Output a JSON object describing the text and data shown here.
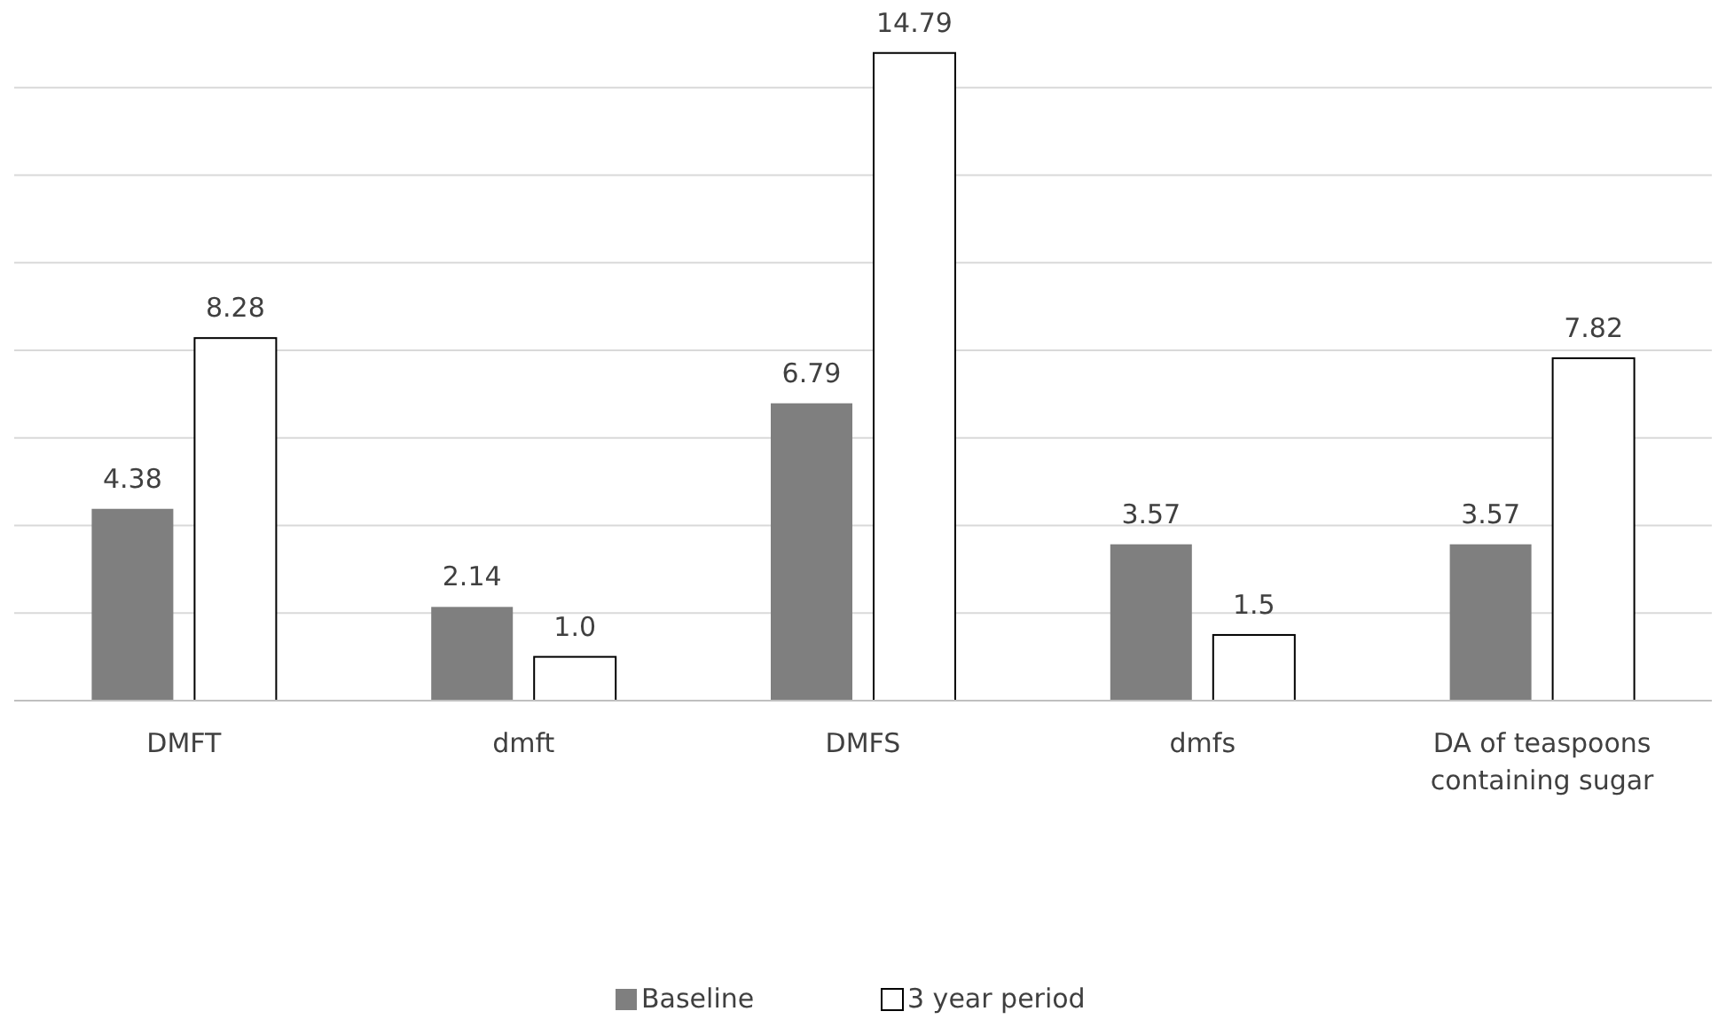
{
  "chart_data": {
    "type": "bar",
    "categories": [
      "DMFT",
      "dmft",
      "DMFS",
      "dmfs",
      "DA of teaspoons containing sugar"
    ],
    "series": [
      {
        "name": "Baseline",
        "color": "#7f7f7f",
        "values": [
          4.38,
          2.14,
          6.79,
          3.57,
          3.57
        ],
        "value_labels": [
          "4.38",
          "2.14",
          "6.79",
          "3.57",
          "3.57"
        ]
      },
      {
        "name": "3 year period",
        "color": "#ffffff",
        "values": [
          8.28,
          1.0,
          14.79,
          1.5,
          7.82
        ],
        "value_labels": [
          "8.28",
          "1.0",
          "14.79",
          "1.5",
          "7.82"
        ]
      }
    ],
    "ylim": [
      0,
      16
    ],
    "yticks": [
      {
        "value": 0,
        "label": null
      },
      {
        "value": 2,
        "label": null
      },
      {
        "value": 4,
        "label": null
      },
      {
        "value": 6,
        "label": null
      },
      {
        "value": 8,
        "label": null
      },
      {
        "value": 10,
        "label": null
      },
      {
        "value": 12,
        "label": null
      },
      {
        "value": 14,
        "label": null
      }
    ],
    "grid": "y",
    "legend": "bottom",
    "tick_labels": "x"
  }
}
